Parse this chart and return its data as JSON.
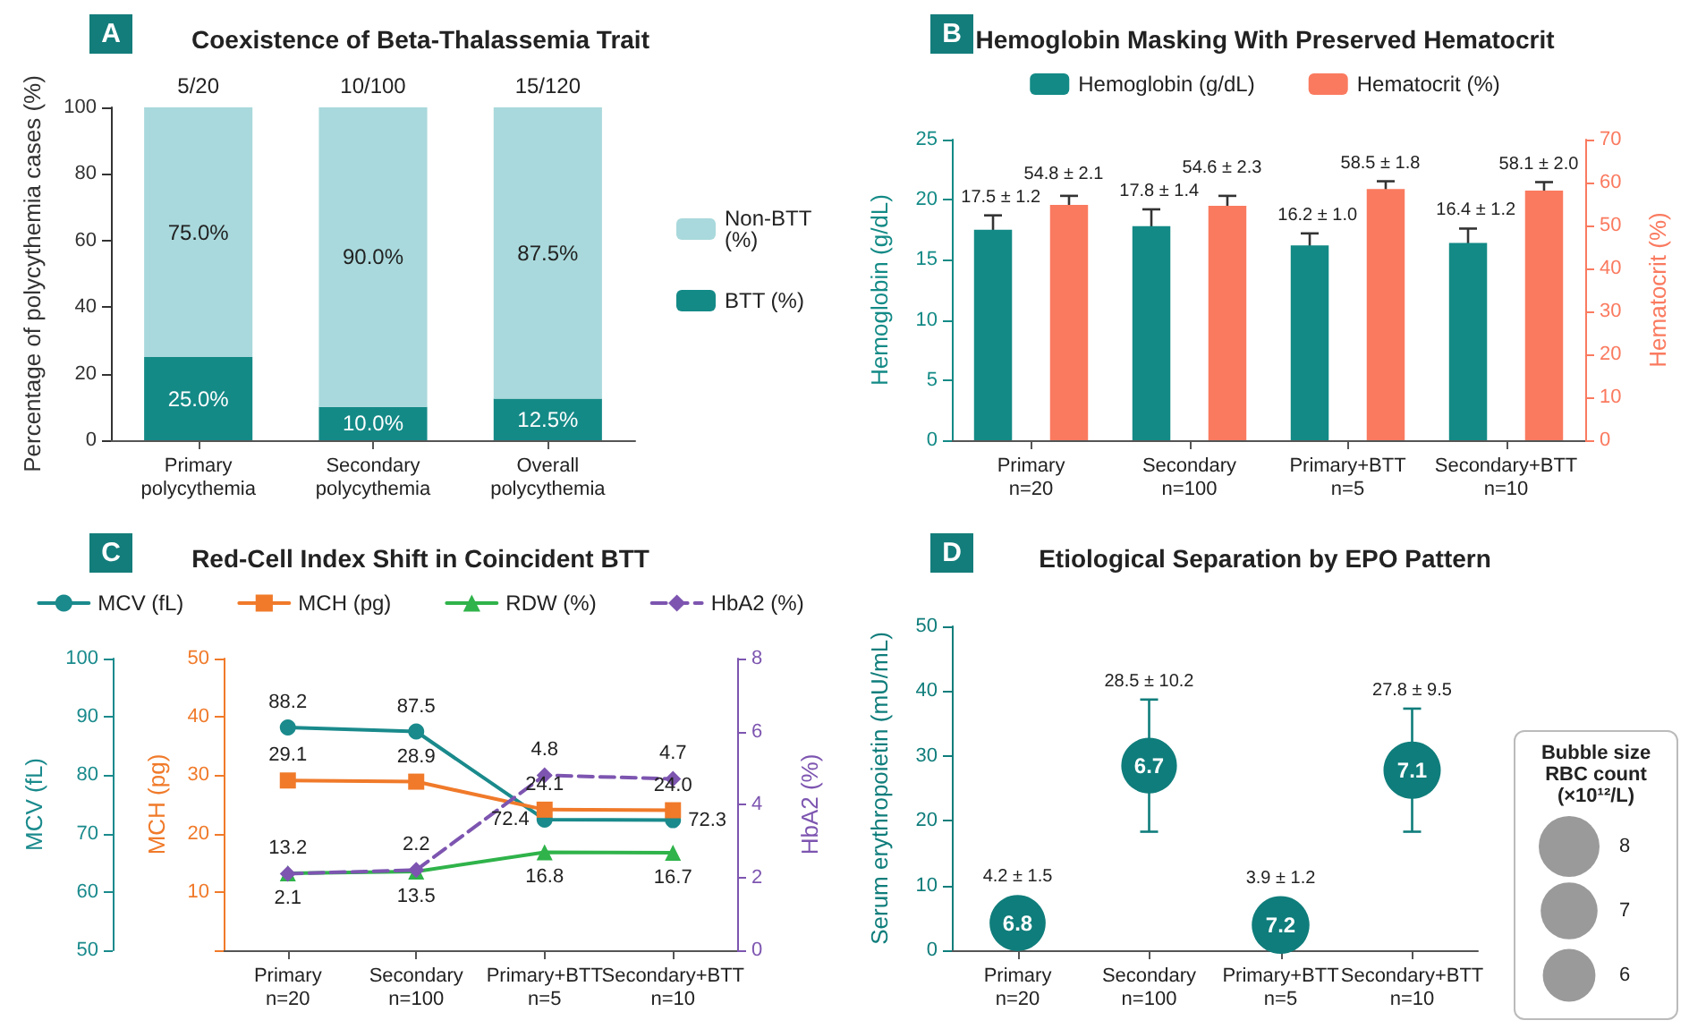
{
  "chart_data": [
    {
      "type": "bar",
      "title": "Coexistence of Beta-Thalassemia Trait",
      "ylabel": "Percentage of polycythemia cases (%)",
      "categories": [
        "Primary\npolycythemia",
        "Secondary\npolycythemia",
        "Overall\npolycythemia"
      ],
      "stacked": true,
      "legend": "right",
      "ylim": [
        0,
        100
      ],
      "yticks": [
        0,
        20,
        40,
        60,
        80,
        100
      ],
      "annotations": [
        "A",
        {
          "text": "5/20",
          "x": "Primary\npolycythemia",
          "y": 100
        },
        {
          "text": "10/100",
          "x": "Secondary\npolycythemia",
          "y": 100
        },
        {
          "text": "15/120",
          "x": "Overall\npolycythemia",
          "y": 100
        }
      ],
      "series": [
        {
          "name": "BTT (%)",
          "color": "#148a87",
          "values": [
            25,
            10,
            12.5
          ],
          "value_labels": [
            "25.0%",
            "10.0%",
            "12.5%"
          ]
        },
        {
          "name": "Non-BTT (%)",
          "color": "#a9d9dc",
          "values": [
            75,
            90,
            87.5
          ],
          "value_labels": [
            "75.0%",
            "90.0%",
            "87.5%"
          ]
        }
      ]
    },
    {
      "type": "bar",
      "title": "Hemoglobin Masking With Preserved Hematocrit",
      "ylabel": "Hemoglobin (g/dL)",
      "y2label": "Hematocrit (%)",
      "categories": [
        "Primary\nn=20",
        "Secondary\nn=100",
        "Primary+BTT\nn=5",
        "Secondary+BTT\nn=10"
      ],
      "legend": "top",
      "ylim": [
        0,
        25
      ],
      "yticks": [
        0,
        5,
        10,
        15,
        20,
        25
      ],
      "y2lim": [
        0,
        70
      ],
      "y2ticks": [
        0,
        10,
        20,
        30,
        40,
        50,
        60,
        70
      ],
      "annotations": [
        "B"
      ],
      "series": [
        {
          "name": "Hemoglobin (g/dL)",
          "color": "#138a86",
          "values": [
            17.5,
            17.8,
            16.2,
            16.4
          ],
          "errors": [
            1.2,
            1.4,
            1.0,
            1.2
          ],
          "value_labels": [
            "17.5 ± 1.2",
            "17.8 ± 1.4",
            "16.2 ± 1.0",
            "16.4 ± 1.2"
          ]
        },
        {
          "name": "Hematocrit (%)",
          "color": "#fa7a5f",
          "axis": "y2",
          "values": [
            54.8,
            54.6,
            58.5,
            58.1
          ],
          "errors": [
            2.1,
            2.3,
            1.8,
            2.0
          ],
          "value_labels": [
            "54.8 ± 2.1",
            "54.6 ± 2.3",
            "58.5 ± 1.8",
            "58.1 ± 2.0"
          ]
        }
      ]
    },
    {
      "type": "line",
      "title": "Red-Cell Index Shift in Coincident BTT",
      "ylabel": "MCV (fL)",
      "y2label": "MCH (pg)",
      "y3label": "HbA2 (%)",
      "categories": [
        "Primary\nn=20",
        "Secondary\nn=100",
        "Primary+BTT\nn=5",
        "Secondary+BTT\nn=10"
      ],
      "legend": "top",
      "ylim": [
        50,
        100
      ],
      "yticks": [
        50,
        60,
        70,
        80,
        90,
        100
      ],
      "y2lim": [
        0,
        50
      ],
      "y2ticks": [
        {
          "value": 0,
          "label": null
        },
        10,
        20,
        30,
        40,
        50
      ],
      "y3lim": [
        0,
        8
      ],
      "y3ticks": [
        0,
        2,
        4,
        6,
        8
      ],
      "annotations": [
        "C"
      ],
      "series": [
        {
          "name": "MCV (fL)",
          "color": "#1a8a8c",
          "marker": "circle",
          "values": [
            88.2,
            87.5,
            72.4,
            72.3
          ],
          "value_labels": [
            "88.2",
            "87.5",
            "72.4",
            "72.3"
          ]
        },
        {
          "name": "MCH (pg)",
          "color": "#f07a2a",
          "axis": "y2",
          "marker": "square",
          "values": [
            29.1,
            28.9,
            24.1,
            24.0
          ],
          "value_labels": [
            "29.1",
            "28.9",
            "24.1",
            "24.0"
          ]
        },
        {
          "name": "RDW (%)",
          "color": "#2fb34a",
          "axis": "y2",
          "marker": "triangle",
          "values": [
            13.2,
            13.5,
            16.8,
            16.7
          ],
          "value_labels": [
            "13.2",
            "13.5",
            "16.8",
            "16.7"
          ]
        },
        {
          "name": "HbA2 (%)",
          "color": "#7d55b0",
          "axis": "y3",
          "marker": "diamond",
          "line_style": "dashed",
          "values": [
            2.1,
            2.2,
            4.8,
            4.7
          ],
          "value_labels": [
            "2.1",
            "2.2",
            "4.8",
            "4.7"
          ]
        }
      ]
    },
    {
      "type": "bubble",
      "title": "Etiological Separation by EPO Pattern",
      "ylabel": "Serum erythropoietin (mU/mL)",
      "legend_title": "Bubble size\nRBC count\n(×10¹²/L)",
      "categories": [
        "Primary\nn=20",
        "Secondary\nn=100",
        "Primary+BTT\nn=5",
        "Secondary+BTT\nn=10"
      ],
      "ylim": [
        0,
        50
      ],
      "yticks": [
        0,
        10,
        20,
        30,
        40,
        50
      ],
      "size_legend": [
        8,
        7,
        6
      ],
      "annotations": [
        "D",
        {
          "text": "6.8",
          "x": "Primary\nn=20",
          "y": 4.2
        },
        {
          "text": "6.7",
          "x": "Secondary\nn=100",
          "y": 28.5
        },
        {
          "text": "7.2",
          "x": "Primary+BTT\nn=5",
          "y": 3.9
        },
        {
          "text": "7.1",
          "x": "Secondary+BTT\nn=10",
          "y": 27.8
        }
      ],
      "series": [
        {
          "color": "#0f7d7b",
          "values": [
            4.2,
            28.5,
            3.9,
            27.8
          ],
          "errors": [
            1.5,
            10.2,
            1.2,
            9.5
          ],
          "sizes": [
            6.8,
            6.7,
            7.2,
            7.1
          ],
          "value_labels": [
            "4.2 ± 1.5",
            "28.5 ± 10.2",
            "3.9 ± 1.2",
            "27.8 ± 9.5"
          ]
        }
      ]
    }
  ]
}
